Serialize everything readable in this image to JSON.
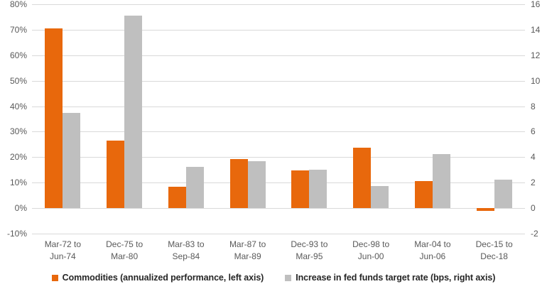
{
  "chart_data": {
    "type": "bar",
    "title": "",
    "xlabel": "",
    "ylabel_left": "",
    "ylabel_right": "",
    "grid": true,
    "legend_position": "bottom",
    "categories": [
      "Mar-72 to\nJun-74",
      "Dec-75 to\nMar-80",
      "Mar-83 to\nSep-84",
      "Mar-87 to\nMar-89",
      "Dec-93 to\nMar-95",
      "Dec-98 to\nJun-00",
      "Mar-04 to\nJun-06",
      "Dec-15 to\nDec-18"
    ],
    "series": [
      {
        "name": "Commodities (annualized performance, left axis)",
        "axis": "left",
        "unit": "%",
        "color": "#e8680c",
        "values": [
          70.5,
          26.5,
          8.4,
          19.4,
          14.9,
          23.7,
          10.5,
          -1.0
        ]
      },
      {
        "name": "Increase in fed funds target rate (bps, right axis)",
        "axis": "right",
        "unit": "bps",
        "color": "#bfbfbf",
        "values": [
          7.5,
          15.1,
          3.25,
          3.7,
          3.0,
          1.75,
          4.25,
          2.25
        ]
      }
    ],
    "left_axis": {
      "min": -10,
      "max": 80,
      "ticks": [
        "80%",
        "70%",
        "60%",
        "50%",
        "40%",
        "30%",
        "20%",
        "10%",
        "0%",
        "-10%"
      ]
    },
    "right_axis": {
      "min": -2,
      "max": 16,
      "ticks": [
        "16",
        "14",
        "12",
        "10",
        "8",
        "6",
        "4",
        "2",
        "0",
        "-2"
      ]
    }
  },
  "style": {
    "gridline_color": "#d9d9d9",
    "tick_color": "#595959",
    "legend_text_color": "#262626",
    "background": "#ffffff"
  }
}
